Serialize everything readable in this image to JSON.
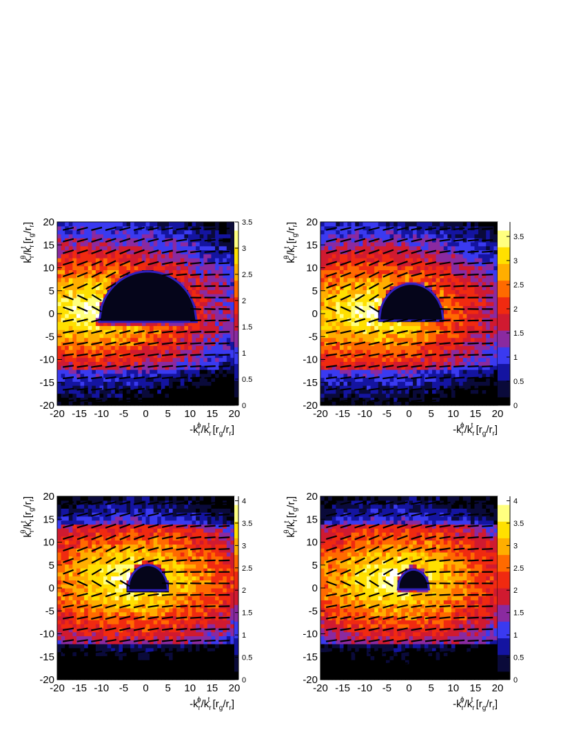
{
  "chart_data": [
    {
      "type": "heatmap",
      "panel": "top-left",
      "xlabel": "-k_r^ϕ/k_r^t [r_g/r_r]",
      "ylabel": "k_r^θ/k_r^t [r_g/r_r]",
      "xlim": [
        -20,
        20
      ],
      "ylim": [
        -20,
        20
      ],
      "x_ticks": [
        "-20",
        "-15",
        "-10",
        "-5",
        "0",
        "5",
        "10",
        "15",
        "20"
      ],
      "y_ticks": [
        "-20",
        "-15",
        "-10",
        "-5",
        "0",
        "5",
        "10",
        "15",
        "20"
      ],
      "z_range": [
        0,
        3.5
      ],
      "colorbar_ticks": [
        "0",
        "0.5",
        "1",
        "1.5",
        "2",
        "2.5",
        "3",
        "3.5"
      ],
      "shadow": {
        "x_range": [
          -11,
          11
        ],
        "y_range": [
          -1.8,
          9.2
        ],
        "center_x": 0.5
      },
      "hot_spot": {
        "x": -12,
        "y": 1
      },
      "overlay": "short black line segments indicating polarization direction"
    },
    {
      "type": "heatmap",
      "panel": "top-right",
      "xlabel": "-k_r^ϕ/k_r^t [r_g/r_r]",
      "ylabel": "k_r^θ/k_r^t [r_g/r_r]",
      "xlim": [
        -20,
        20
      ],
      "ylim": [
        -20,
        20
      ],
      "x_ticks": [
        "-20",
        "-15",
        "-10",
        "-5",
        "0",
        "5",
        "10",
        "15",
        "20"
      ],
      "y_ticks": [
        "-20",
        "-15",
        "-10",
        "-5",
        "0",
        "5",
        "10",
        "15",
        "20"
      ],
      "z_range": [
        0,
        3.8
      ],
      "colorbar_ticks": [
        "0",
        "0.5",
        "1",
        "1.5",
        "2",
        "2.5",
        "3",
        "3.5"
      ],
      "shadow": {
        "x_range": [
          -7,
          7.5
        ],
        "y_range": [
          -1.5,
          6.5
        ],
        "center_x": 0.5
      },
      "hot_spot": {
        "x": -9,
        "y": 0.5
      },
      "overlay": "short black line segments indicating polarization direction"
    },
    {
      "type": "heatmap",
      "panel": "bottom-left",
      "xlabel": "-k_r^ϕ/k_r^t [r_g/r_r]",
      "ylabel": "k_r^θ/k_r^t [r_g/r_r]",
      "xlim": [
        -20,
        20
      ],
      "ylim": [
        -20,
        20
      ],
      "x_ticks": [
        "-20",
        "-15",
        "-10",
        "-5",
        "0",
        "5",
        "10",
        "15",
        "20"
      ],
      "y_ticks": [
        "-20",
        "-15",
        "-10",
        "-5",
        "0",
        "5",
        "10",
        "15",
        "20"
      ],
      "z_range": [
        0,
        4.1
      ],
      "colorbar_ticks": [
        "0",
        "0.5",
        "1",
        "1.5",
        "2",
        "2.5",
        "3",
        "3.5",
        "4"
      ],
      "shadow": {
        "x_range": [
          -4,
          5
        ],
        "y_range": [
          -0.5,
          5
        ],
        "center_x": 0.5
      },
      "hot_spot": {
        "x": -3,
        "y": 2
      },
      "overlay": "short black line segments indicating polarization direction"
    },
    {
      "type": "heatmap",
      "panel": "bottom-right",
      "xlabel": "-k_r^ϕ/k_r^t [r_g/r_r]",
      "ylabel": "k_r^θ/k_r^t [r_g/r_r]",
      "xlim": [
        -20,
        20
      ],
      "ylim": [
        -20,
        20
      ],
      "x_ticks": [
        "-20",
        "-15",
        "-10",
        "-5",
        "0",
        "5",
        "10",
        "15",
        "20"
      ],
      "y_ticks": [
        "-20",
        "-15",
        "-10",
        "-5",
        "0",
        "5",
        "10",
        "15",
        "20"
      ],
      "z_range": [
        0,
        4.1
      ],
      "colorbar_ticks": [
        "0",
        "0.5",
        "1",
        "1.5",
        "2",
        "2.5",
        "3",
        "3.5",
        "4"
      ],
      "shadow": {
        "x_range": [
          -2.5,
          4.5
        ],
        "y_range": [
          -0.3,
          4
        ],
        "center_x": 1
      },
      "hot_spot": {
        "x": -3,
        "y": 2
      },
      "overlay": "short black line segments indicating polarization direction"
    }
  ],
  "colors": {
    "palette": [
      "#000000",
      "#0a0a3a",
      "#1414a0",
      "#3a3af0",
      "#8a2aa0",
      "#d01a30",
      "#f02a10",
      "#ff6a00",
      "#ffae00",
      "#ffe000",
      "#ffff80",
      "#ffffff"
    ],
    "segment": "#000000",
    "shadow_rim": "#3020c0"
  }
}
